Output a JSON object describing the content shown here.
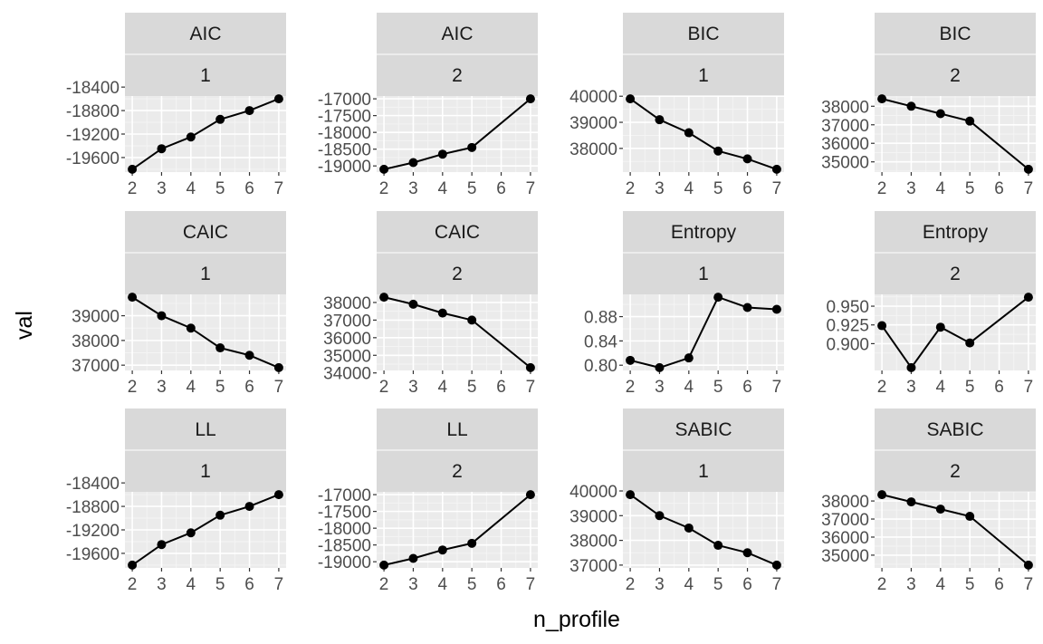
{
  "figure": {
    "xlabel": "n_profile",
    "ylabel": "val",
    "colors": {
      "strip_fill": "#d9d9d9",
      "strip_divider": "#ffffff",
      "panel_bg": "#ebebeb",
      "grid_major": "#ffffff",
      "grid_minor": "#f4f4f4",
      "tick_color": "#333333",
      "tick_label_color": "#4d4d4d",
      "line_color": "#000000",
      "point_color": "#000000"
    }
  },
  "chart_data": [
    {
      "type": "line",
      "strip_top": "AIC",
      "strip_bottom": "1",
      "x": [
        2,
        3,
        4,
        5,
        6,
        7
      ],
      "y": [
        -19800,
        -19450,
        -19250,
        -18950,
        -18800,
        -18600
      ],
      "ylim": [
        -19800,
        -18600
      ],
      "yticks": [
        -19600,
        -19200,
        -18800,
        -18400
      ],
      "ytick_labels": [
        "-19600",
        "-19200",
        "-18800",
        "-18400"
      ],
      "xticks": [
        2,
        3,
        4,
        5,
        6,
        7
      ],
      "xtick_labels": [
        "2",
        "3",
        "4",
        "5",
        "6",
        "7"
      ]
    },
    {
      "type": "line",
      "strip_top": "AIC",
      "strip_bottom": "2",
      "x": [
        2,
        3,
        4,
        5,
        7
      ],
      "y": [
        -19100,
        -18900,
        -18650,
        -18450,
        -17000
      ],
      "ylim": [
        -19100,
        -17000
      ],
      "yticks": [
        -19000,
        -18500,
        -18000,
        -17500,
        -17000
      ],
      "ytick_labels": [
        "-19000",
        "-18500",
        "-18000",
        "-17500",
        "-17000"
      ],
      "xticks": [
        2,
        3,
        4,
        5,
        6,
        7
      ],
      "xtick_labels": [
        "2",
        "3",
        "4",
        "5",
        "6",
        "7"
      ]
    },
    {
      "type": "line",
      "strip_top": "BIC",
      "strip_bottom": "1",
      "x": [
        2,
        3,
        4,
        5,
        6,
        7
      ],
      "y": [
        39900,
        39100,
        38600,
        37900,
        37600,
        37200
      ],
      "ylim": [
        37200,
        39900
      ],
      "yticks": [
        38000,
        39000,
        40000
      ],
      "ytick_labels": [
        "38000",
        "39000",
        "40000"
      ],
      "xticks": [
        2,
        3,
        4,
        5,
        6,
        7
      ],
      "xtick_labels": [
        "2",
        "3",
        "4",
        "5",
        "6",
        "7"
      ]
    },
    {
      "type": "line",
      "strip_top": "BIC",
      "strip_bottom": "2",
      "x": [
        2,
        3,
        4,
        5,
        7
      ],
      "y": [
        38400,
        38000,
        37600,
        37200,
        34600
      ],
      "ylim": [
        34600,
        38400
      ],
      "yticks": [
        35000,
        36000,
        37000,
        38000
      ],
      "ytick_labels": [
        "35000",
        "36000",
        "37000",
        "38000"
      ],
      "xticks": [
        2,
        3,
        4,
        5,
        6,
        7
      ],
      "xtick_labels": [
        "2",
        "3",
        "4",
        "5",
        "6",
        "7"
      ]
    },
    {
      "type": "line",
      "strip_top": "CAIC",
      "strip_bottom": "1",
      "x": [
        2,
        3,
        4,
        5,
        6,
        7
      ],
      "y": [
        39750,
        39000,
        38500,
        37700,
        37400,
        36900
      ],
      "ylim": [
        36900,
        39750
      ],
      "yticks": [
        37000,
        38000,
        39000
      ],
      "ytick_labels": [
        "37000",
        "38000",
        "39000"
      ],
      "xticks": [
        2,
        3,
        4,
        5,
        6,
        7
      ],
      "xtick_labels": [
        "2",
        "3",
        "4",
        "5",
        "6",
        "7"
      ]
    },
    {
      "type": "line",
      "strip_top": "CAIC",
      "strip_bottom": "2",
      "x": [
        2,
        3,
        4,
        5,
        7
      ],
      "y": [
        38300,
        37900,
        37400,
        37000,
        34300
      ],
      "ylim": [
        34300,
        38300
      ],
      "yticks": [
        34000,
        35000,
        36000,
        37000,
        38000
      ],
      "ytick_labels": [
        "34000",
        "35000",
        "36000",
        "37000",
        "38000"
      ],
      "xticks": [
        2,
        3,
        4,
        5,
        6,
        7
      ],
      "xtick_labels": [
        "2",
        "3",
        "4",
        "5",
        "6",
        "7"
      ]
    },
    {
      "type": "line",
      "strip_top": "Entropy",
      "strip_bottom": "1",
      "x": [
        2,
        3,
        4,
        5,
        6,
        7
      ],
      "y": [
        0.808,
        0.796,
        0.812,
        0.912,
        0.895,
        0.892
      ],
      "ylim": [
        0.796,
        0.912
      ],
      "yticks": [
        0.8,
        0.84,
        0.88
      ],
      "ytick_labels": [
        "0.80",
        "0.84",
        "0.88"
      ],
      "xticks": [
        2,
        3,
        4,
        5,
        6,
        7
      ],
      "xtick_labels": [
        "2",
        "3",
        "4",
        "5",
        "6",
        "7"
      ]
    },
    {
      "type": "line",
      "strip_top": "Entropy",
      "strip_bottom": "2",
      "x": [
        2,
        3,
        4,
        5,
        7
      ],
      "y": [
        0.924,
        0.868,
        0.922,
        0.901,
        0.962
      ],
      "ylim": [
        0.868,
        0.962
      ],
      "yticks": [
        0.9,
        0.925,
        0.95
      ],
      "ytick_labels": [
        "0.900",
        "0.925",
        "0.950"
      ],
      "xticks": [
        2,
        3,
        4,
        5,
        6,
        7
      ],
      "xtick_labels": [
        "2",
        "3",
        "4",
        "5",
        "6",
        "7"
      ]
    },
    {
      "type": "line",
      "strip_top": "LL",
      "strip_bottom": "1",
      "x": [
        2,
        3,
        4,
        5,
        6,
        7
      ],
      "y": [
        -19800,
        -19450,
        -19250,
        -18950,
        -18800,
        -18600
      ],
      "ylim": [
        -19800,
        -18600
      ],
      "yticks": [
        -19600,
        -19200,
        -18800,
        -18400
      ],
      "ytick_labels": [
        "-19600",
        "-19200",
        "-18800",
        "-18400"
      ],
      "xticks": [
        2,
        3,
        4,
        5,
        6,
        7
      ],
      "xtick_labels": [
        "2",
        "3",
        "4",
        "5",
        "6",
        "7"
      ]
    },
    {
      "type": "line",
      "strip_top": "LL",
      "strip_bottom": "2",
      "x": [
        2,
        3,
        4,
        5,
        7
      ],
      "y": [
        -19100,
        -18900,
        -18650,
        -18450,
        -17000
      ],
      "ylim": [
        -19100,
        -17000
      ],
      "yticks": [
        -19000,
        -18500,
        -18000,
        -17500,
        -17000
      ],
      "ytick_labels": [
        "-19000",
        "-18500",
        "-18000",
        "-17500",
        "-17000"
      ],
      "xticks": [
        2,
        3,
        4,
        5,
        6,
        7
      ],
      "xtick_labels": [
        "2",
        "3",
        "4",
        "5",
        "6",
        "7"
      ]
    },
    {
      "type": "line",
      "strip_top": "SABIC",
      "strip_bottom": "1",
      "x": [
        2,
        3,
        4,
        5,
        6,
        7
      ],
      "y": [
        39850,
        39000,
        38500,
        37800,
        37500,
        37000
      ],
      "ylim": [
        37000,
        39850
      ],
      "yticks": [
        37000,
        38000,
        39000,
        40000
      ],
      "ytick_labels": [
        "37000",
        "38000",
        "39000",
        "40000"
      ],
      "xticks": [
        2,
        3,
        4,
        5,
        6,
        7
      ],
      "xtick_labels": [
        "2",
        "3",
        "4",
        "5",
        "6",
        "7"
      ]
    },
    {
      "type": "line",
      "strip_top": "SABIC",
      "strip_bottom": "2",
      "x": [
        2,
        3,
        4,
        5,
        7
      ],
      "y": [
        38350,
        37950,
        37550,
        37150,
        34450
      ],
      "ylim": [
        34450,
        38350
      ],
      "yticks": [
        35000,
        36000,
        37000,
        38000
      ],
      "ytick_labels": [
        "35000",
        "36000",
        "37000",
        "38000"
      ],
      "xticks": [
        2,
        3,
        4,
        5,
        6,
        7
      ],
      "xtick_labels": [
        "2",
        "3",
        "4",
        "5",
        "6",
        "7"
      ]
    }
  ]
}
